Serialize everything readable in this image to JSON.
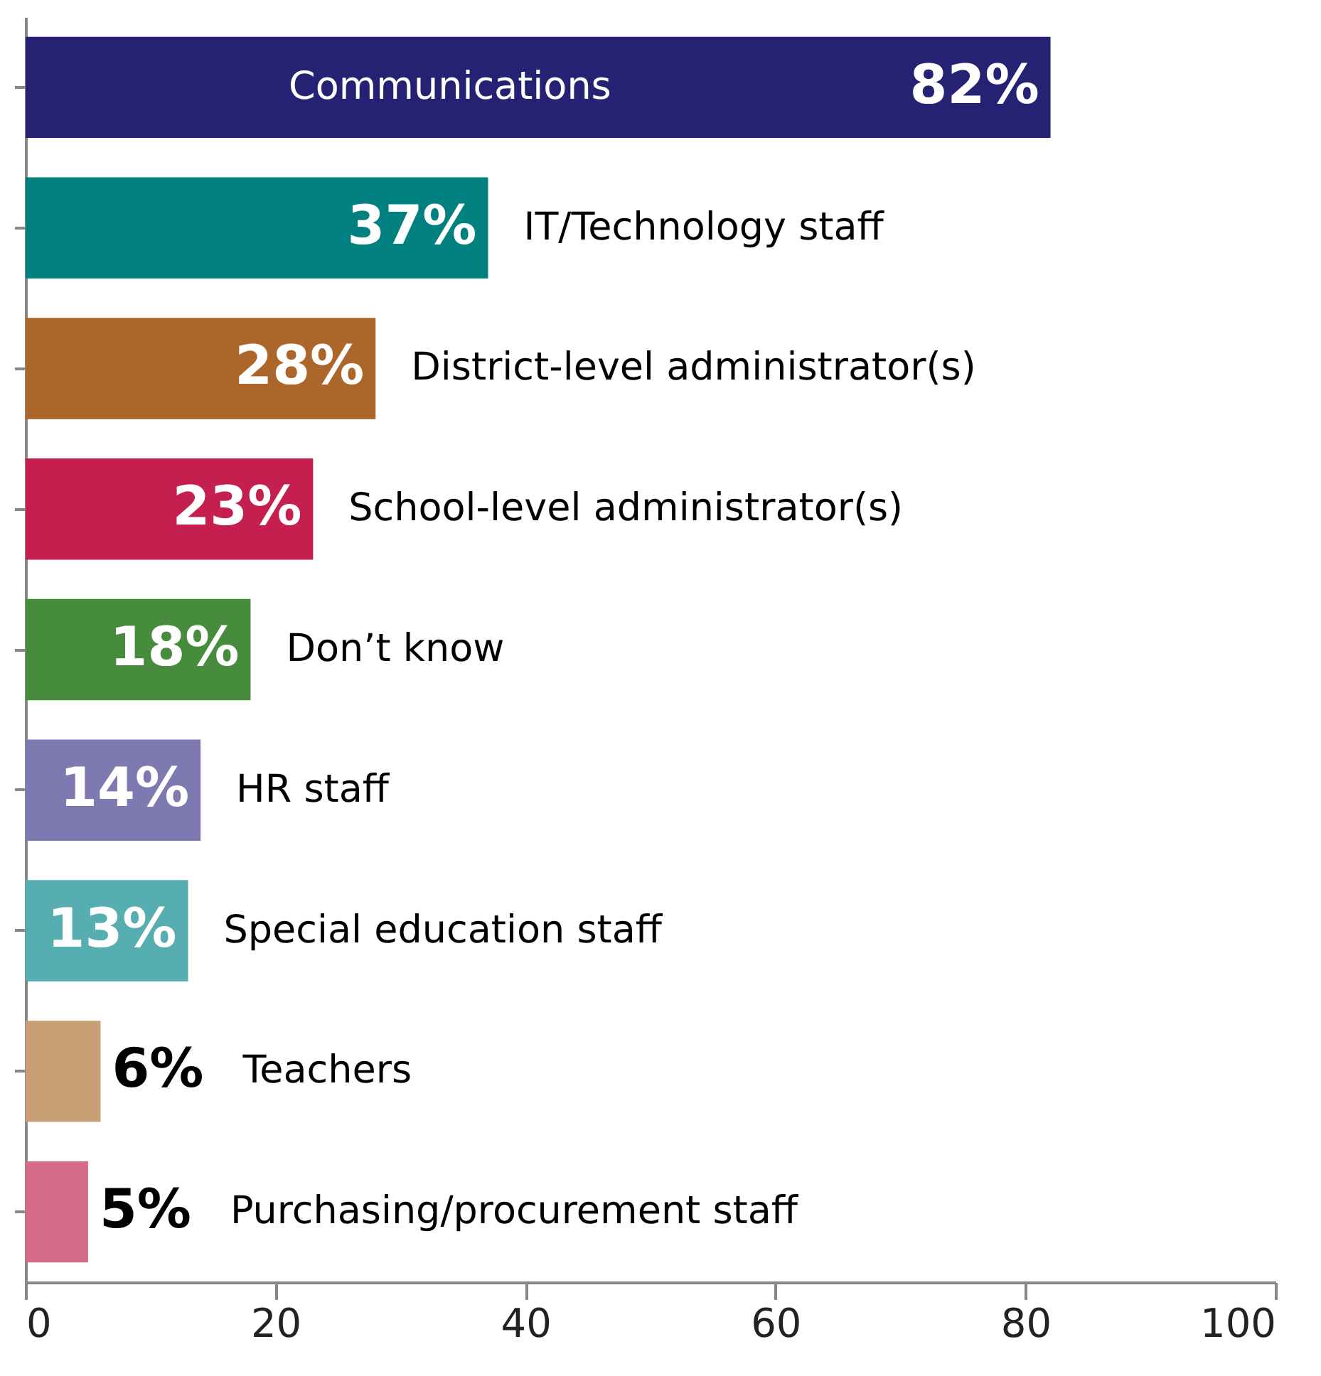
{
  "chart_data": {
    "type": "bar",
    "orientation": "horizontal",
    "tick_labels": "x",
    "categories": [
      "Communications",
      "IT/Technology staff",
      "District-level administrator(s)",
      "School-level administrator(s)",
      "Don’t know",
      "HR staff",
      "Special education staff",
      "Teachers",
      "Purchasing/procurement staff"
    ],
    "values": [
      82,
      37,
      28,
      23,
      18,
      14,
      13,
      6,
      5
    ],
    "colors": [
      "#252274",
      "#00807f",
      "#ad6629",
      "#c41f4f",
      "#478b3c",
      "#7e79b0",
      "#57aeb0",
      "#c99f74",
      "#d66a8b"
    ],
    "value_labels": [
      "82%",
      "37%",
      "28%",
      "23%",
      "18%",
      "14%",
      "13%",
      "6%",
      "5%"
    ],
    "xlim": [
      0,
      100
    ],
    "xticks": [
      0,
      20,
      40,
      60,
      80,
      100
    ]
  }
}
